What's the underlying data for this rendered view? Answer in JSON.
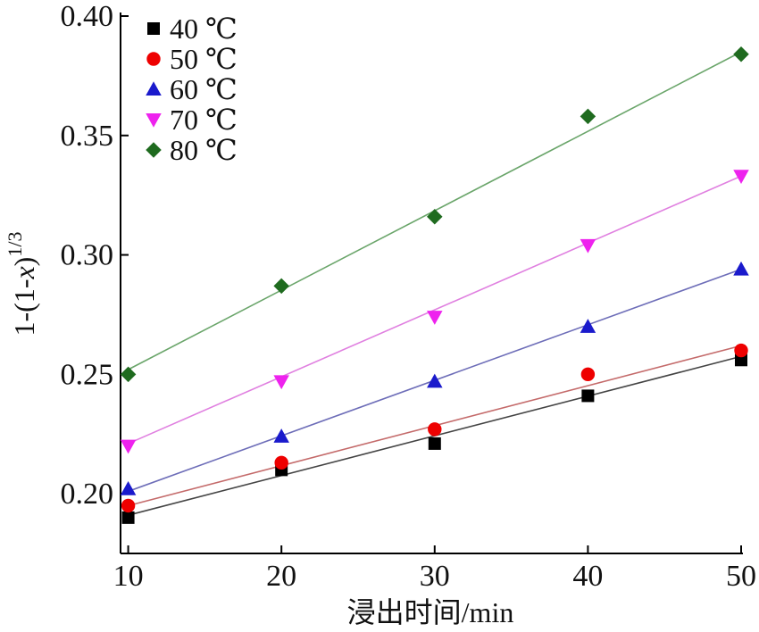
{
  "chart_data": {
    "type": "scatter",
    "xlabel": "浸出时间/min",
    "ylabel": {
      "prefix": "1-(1-",
      "var": "x",
      "suffix": ")",
      "sup": "1/3"
    },
    "xlim": [
      9.5,
      50
    ],
    "ylim": [
      0.175,
      0.4
    ],
    "xticks": [
      10,
      20,
      30,
      40,
      50
    ],
    "yticks": [
      0.2,
      0.25,
      0.3,
      0.35,
      0.4
    ],
    "ytick_labels": [
      "0.20",
      "0.25",
      "0.30",
      "0.35",
      "0.40"
    ],
    "grid": false,
    "legend": "top-left",
    "x": [
      10,
      20,
      30,
      40,
      50
    ],
    "series": [
      {
        "name": "40 ℃",
        "marker": "square",
        "color": "#000000",
        "line_color": "#444444",
        "values": [
          0.19,
          0.21,
          0.221,
          0.241,
          0.256
        ],
        "fit": [
          0.191,
          0.2575
        ]
      },
      {
        "name": "50 ℃",
        "marker": "circle",
        "color": "#ee0000",
        "line_color": "#c46a6a",
        "values": [
          0.195,
          0.213,
          0.227,
          0.25,
          0.26
        ],
        "fit": [
          0.195,
          0.262
        ]
      },
      {
        "name": "60 ℃",
        "marker": "triangle-up",
        "color": "#1a1acc",
        "line_color": "#6d6db8",
        "values": [
          0.202,
          0.224,
          0.247,
          0.27,
          0.294
        ],
        "fit": [
          0.201,
          0.294
        ]
      },
      {
        "name": "70 ℃",
        "marker": "triangle-down",
        "color": "#ee22ee",
        "line_color": "#e080e0",
        "values": [
          0.22,
          0.247,
          0.274,
          0.304,
          0.333
        ],
        "fit": [
          0.221,
          0.333
        ]
      },
      {
        "name": "80 ℃",
        "marker": "diamond",
        "color": "#1f6b1f",
        "line_color": "#6aa56a",
        "values": [
          0.25,
          0.287,
          0.316,
          0.358,
          0.384
        ],
        "fit": [
          0.252,
          0.385
        ]
      }
    ]
  }
}
